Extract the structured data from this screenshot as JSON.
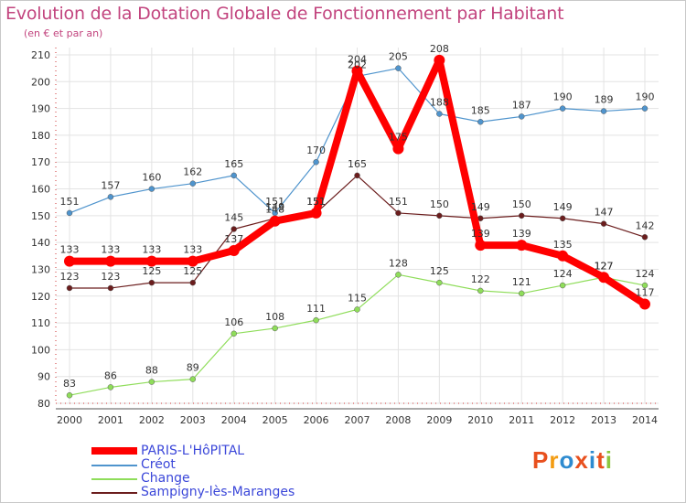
{
  "page": {
    "title": "Evolution de la Dotation Globale de Fonctionnement par Habitant",
    "subtitle": "(en € et par an)"
  },
  "logo": {
    "text": "Proxiti",
    "colors": [
      "#e8501e",
      "#f39c12",
      "#2e8bd0",
      "#e8501e",
      "#2e8bd0",
      "#e8501e",
      "#8dc63f"
    ]
  },
  "chart_data": {
    "type": "line",
    "title": "Evolution de la Dotation Globale de Fonctionnement par Habitant",
    "subtitle": "(en € et par an)",
    "xlabel": "",
    "ylabel": "",
    "categories": [
      "2000",
      "2001",
      "2002",
      "2003",
      "2004",
      "2005",
      "2006",
      "2007",
      "2008",
      "2009",
      "2010",
      "2011",
      "2012",
      "2013",
      "2014"
    ],
    "ylim": [
      80,
      210
    ],
    "yticks": [
      80,
      90,
      100,
      110,
      120,
      130,
      140,
      150,
      160,
      170,
      180,
      190,
      200,
      210
    ],
    "grid": true,
    "legend_position": "bottom-left",
    "series": [
      {
        "name": "PARIS-L'HôPITAL",
        "color": "#ff0000",
        "values": [
          133,
          133,
          133,
          133,
          137,
          148,
          151,
          204,
          175,
          208,
          139,
          139,
          135,
          127,
          117
        ]
      },
      {
        "name": "Créot",
        "color": "#4f94cd",
        "values": [
          151,
          157,
          160,
          162,
          165,
          151,
          170,
          202,
          205,
          188,
          185,
          187,
          190,
          189,
          190
        ]
      },
      {
        "name": "Change",
        "color": "#8fdd5a",
        "values": [
          83,
          86,
          88,
          89,
          106,
          108,
          111,
          115,
          128,
          125,
          122,
          121,
          124,
          127,
          124
        ]
      },
      {
        "name": "Sampigny-lès-Maranges",
        "color": "#6b1d1d",
        "values": [
          123,
          123,
          125,
          125,
          145,
          149,
          151,
          165,
          151,
          150,
          149,
          150,
          149,
          147,
          142
        ]
      }
    ]
  }
}
